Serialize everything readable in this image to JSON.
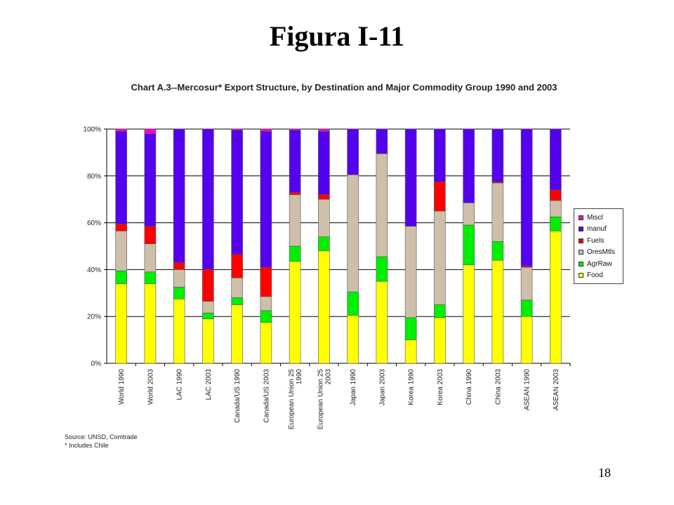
{
  "slide": {
    "title": "Figura I-11",
    "page_number": "18"
  },
  "source": {
    "line1": "Source:  UNSD, Comtrade",
    "line2": "* Includes Chile"
  },
  "colors": {
    "Food": "#ffff00",
    "AgrRaw": "#00ee00",
    "OresMtls": "#cdbfa9",
    "Fuels": "#ff0000",
    "manuf": "#5500ee",
    "Miscl": "#ff00cc"
  },
  "chart_data": {
    "type": "bar",
    "stacked": true,
    "title": "Chart A.3--Mercosur* Export Structure, by Destination and Major Commodity Group 1990 and 2003",
    "xlabel": "",
    "ylabel": "",
    "ylim": [
      0,
      100
    ],
    "yticks": [
      "0%",
      "20%",
      "40%",
      "60%",
      "80%",
      "100%"
    ],
    "grid": true,
    "legend_position": "right",
    "legend_order": [
      "Miscl",
      "manuf",
      "Fuels",
      "OresMtls",
      "AgrRaw",
      "Food"
    ],
    "categories": [
      "World 1990",
      "World 2003",
      "LAC 1990",
      "LAC 2003",
      "Canada/US 1990",
      "Canada/US 2003",
      "European Union 25 1990",
      "European Union 25 2003",
      "Japan 1990",
      "Japan 2003",
      "Korea 1990",
      "Korea 2003",
      "China 1990",
      "China 2003",
      "ASEAN 1990",
      "ASEAN 2003"
    ],
    "series": [
      {
        "name": "Food",
        "values": [
          34,
          34,
          27.5,
          19,
          25,
          17.5,
          43.5,
          48,
          20.5,
          35,
          10,
          19.5,
          42,
          44,
          20,
          56.5
        ]
      },
      {
        "name": "AgrRaw",
        "values": [
          5.5,
          5,
          5,
          2.5,
          3,
          5,
          6.5,
          6,
          10,
          10.5,
          9.5,
          5.5,
          17,
          8,
          7,
          6
        ]
      },
      {
        "name": "OresMtls",
        "values": [
          17,
          12,
          7.5,
          5,
          8.5,
          6,
          22,
          16,
          50,
          44,
          39,
          40,
          9.5,
          25,
          14,
          7
        ]
      },
      {
        "name": "Fuels",
        "values": [
          3,
          7.5,
          3,
          13.5,
          10,
          12.5,
          1,
          2,
          0,
          0,
          0,
          12.5,
          0,
          0.5,
          0.5,
          4.5
        ]
      },
      {
        "name": "manuf",
        "values": [
          39.5,
          39.5,
          57,
          60,
          53,
          58,
          26.5,
          27,
          19.5,
          10.5,
          41.5,
          22.5,
          31.5,
          22.5,
          58.5,
          26
        ]
      },
      {
        "name": "Miscl",
        "values": [
          1,
          2,
          0,
          0,
          0.5,
          1,
          0.5,
          1,
          0,
          0,
          0,
          0,
          0,
          0,
          0,
          0
        ]
      }
    ]
  }
}
